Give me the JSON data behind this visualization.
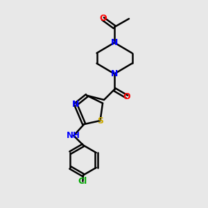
{
  "background_color": "#e8e8e8",
  "bond_color": "#000000",
  "bond_width": 1.8,
  "atom_colors": {
    "N": "#0000ff",
    "O": "#ff0000",
    "S": "#ccaa00",
    "Cl": "#00aa00",
    "C": "#000000",
    "H": "#000000"
  },
  "font_size_atom": 9,
  "font_size_small": 7.5
}
